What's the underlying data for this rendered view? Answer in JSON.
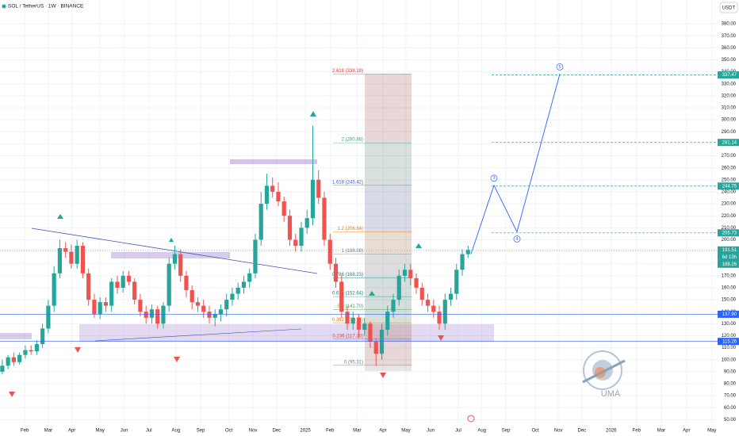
{
  "chart_data": {
    "type": "candlestick",
    "title": "SOL / TetherUS · 1W · BINANCE",
    "currency": "USDT",
    "watermark": "UMA",
    "up_color": "#26a69a",
    "down_color": "#ef5350",
    "open": [
      90,
      95,
      102,
      98,
      104,
      108,
      107,
      113,
      126,
      145,
      172,
      193,
      190,
      180,
      195,
      172,
      150,
      138,
      148,
      145,
      165,
      160,
      170,
      165,
      150,
      140,
      135,
      142,
      130,
      145,
      180,
      188,
      170,
      158,
      148,
      145,
      140,
      135,
      138,
      142,
      150,
      155,
      160,
      165,
      172,
      200,
      230,
      245,
      240,
      232,
      220,
      200,
      195,
      210,
      218,
      250,
      235,
      200,
      180,
      165,
      140,
      130,
      135,
      125,
      130,
      115,
      105,
      125,
      140,
      150,
      170,
      175,
      168,
      160,
      150,
      145,
      140,
      130,
      150,
      155,
      175,
      188
    ],
    "high": [
      100,
      104,
      106,
      106,
      112,
      112,
      116,
      130,
      150,
      178,
      200,
      198,
      196,
      200,
      198,
      176,
      155,
      152,
      152,
      168,
      170,
      174,
      174,
      168,
      155,
      145,
      146,
      145,
      148,
      185,
      195,
      192,
      174,
      162,
      152,
      150,
      145,
      142,
      146,
      155,
      160,
      164,
      170,
      176,
      205,
      240,
      255,
      252,
      248,
      236,
      225,
      205,
      215,
      225,
      295,
      258,
      240,
      205,
      185,
      170,
      145,
      140,
      138,
      135,
      132,
      118,
      130,
      145,
      155,
      175,
      180,
      180,
      172,
      164,
      155,
      150,
      145,
      155,
      160,
      180,
      192,
      195
    ],
    "low": [
      88,
      92,
      95,
      96,
      101,
      104,
      104,
      110,
      122,
      140,
      168,
      185,
      176,
      176,
      168,
      145,
      135,
      134,
      140,
      140,
      155,
      156,
      162,
      146,
      136,
      130,
      130,
      126,
      126,
      140,
      175,
      165,
      152,
      142,
      140,
      135,
      130,
      128,
      132,
      136,
      145,
      150,
      155,
      160,
      168,
      195,
      225,
      235,
      228,
      215,
      195,
      190,
      190,
      205,
      212,
      230,
      195,
      175,
      160,
      135,
      125,
      125,
      118,
      120,
      110,
      95,
      100,
      120,
      135,
      145,
      165,
      162,
      155,
      145,
      140,
      135,
      125,
      125,
      145,
      150,
      170,
      185
    ],
    "close": [
      95,
      102,
      98,
      104,
      108,
      107,
      113,
      126,
      145,
      172,
      193,
      190,
      180,
      195,
      172,
      150,
      138,
      148,
      145,
      165,
      160,
      170,
      165,
      150,
      140,
      135,
      142,
      130,
      145,
      180,
      188,
      170,
      158,
      148,
      145,
      140,
      135,
      138,
      142,
      150,
      155,
      160,
      165,
      172,
      200,
      230,
      245,
      240,
      232,
      220,
      200,
      195,
      210,
      218,
      250,
      235,
      200,
      180,
      165,
      140,
      130,
      135,
      125,
      130,
      115,
      105,
      125,
      140,
      150,
      170,
      175,
      168,
      160,
      150,
      145,
      140,
      130,
      150,
      155,
      175,
      188,
      191.51
    ],
    "xlim": [
      -0.4,
      124.4
    ],
    "xticks": [
      {
        "value": 3.9,
        "label": "Feb"
      },
      {
        "value": 8,
        "label": "Mar"
      },
      {
        "value": 12.1,
        "label": "Apr"
      },
      {
        "value": 17,
        "label": "May"
      },
      {
        "value": 21.2,
        "label": "Jun"
      },
      {
        "value": 25.5,
        "label": "Jul"
      },
      {
        "value": 30.2,
        "label": "Aug"
      },
      {
        "value": 34.5,
        "label": "Sep"
      },
      {
        "value": 39.4,
        "label": "Oct"
      },
      {
        "value": 43.6,
        "label": "Nov"
      },
      {
        "value": 47.7,
        "label": "Dec"
      },
      {
        "value": 52.7,
        "label": "2025"
      },
      {
        "value": 57,
        "label": "Feb"
      },
      {
        "value": 61.7,
        "label": "Mar"
      },
      {
        "value": 66.2,
        "label": "Apr"
      },
      {
        "value": 70.2,
        "label": "May"
      },
      {
        "value": 74.5,
        "label": "Jun"
      },
      {
        "value": 79.3,
        "label": "Jul"
      },
      {
        "value": 83.4,
        "label": "Aug"
      },
      {
        "value": 87.6,
        "label": "Sep"
      },
      {
        "value": 92.7,
        "label": "Oct"
      },
      {
        "value": 96.7,
        "label": "Nov"
      },
      {
        "value": 100.8,
        "label": "Dec"
      },
      {
        "value": 105.9,
        "label": "2026"
      },
      {
        "value": 110.3,
        "label": "Feb"
      },
      {
        "value": 114.6,
        "label": "Mar"
      },
      {
        "value": 119,
        "label": "Apr"
      },
      {
        "value": 123.4,
        "label": "May"
      }
    ],
    "ylim": [
      43,
      390
    ],
    "yticks": [
      {
        "value": 50,
        "label": "50.00"
      },
      {
        "value": 60,
        "label": "60.00"
      },
      {
        "value": 70,
        "label": "70.00"
      },
      {
        "value": 80,
        "label": "80.00"
      },
      {
        "value": 90,
        "label": "90.00"
      },
      {
        "value": 100,
        "label": "100.00"
      },
      {
        "value": 110,
        "label": "110.00"
      },
      {
        "value": 120,
        "label": "120.00"
      },
      {
        "value": 130,
        "label": "130.00"
      },
      {
        "value": 140,
        "label": "140.00"
      },
      {
        "value": 150,
        "label": "150.00"
      },
      {
        "value": 160,
        "label": "160.00"
      },
      {
        "value": 170,
        "label": "170.00"
      },
      {
        "value": 180,
        "label": "180.00"
      },
      {
        "value": 190,
        "label": "190.00"
      },
      {
        "value": 200,
        "label": "200.00"
      },
      {
        "value": 210,
        "label": "210.00"
      },
      {
        "value": 220,
        "label": "220.00"
      },
      {
        "value": 230,
        "label": "230.00"
      },
      {
        "value": 240,
        "label": "240.00"
      },
      {
        "value": 250,
        "label": "250.00"
      },
      {
        "value": 260,
        "label": "260.00"
      },
      {
        "value": 270,
        "label": "270.00"
      },
      {
        "value": 280,
        "label": "280.00"
      },
      {
        "value": 290,
        "label": "290.00"
      },
      {
        "value": 300,
        "label": "300.00"
      },
      {
        "value": 310,
        "label": "310.00"
      },
      {
        "value": 320,
        "label": "320.00"
      },
      {
        "value": 330,
        "label": "330.00"
      },
      {
        "value": 340,
        "label": "340.00"
      },
      {
        "value": 350,
        "label": "350.00"
      },
      {
        "value": 360,
        "label": "360.00"
      },
      {
        "value": 370,
        "label": "370.00"
      },
      {
        "value": 380,
        "label": "380.00"
      }
    ],
    "grid": true,
    "fib": [
      {
        "label": "2.618 (338.19)",
        "value": 338.19,
        "color": "#e53935"
      },
      {
        "label": "2 (280.86)",
        "value": 280.86,
        "color": "#26a69a"
      },
      {
        "label": "1.618 (245.42)",
        "value": 245.42,
        "color": "#2962ff"
      },
      {
        "label": "1.2 (206.64)",
        "value": 206.64,
        "color": "#f57c00"
      },
      {
        "label": "1 (188.08)",
        "value": 188.08,
        "color": "#787b86"
      },
      {
        "label": "0.786 (168.23)",
        "value": 168.23,
        "color": "#00897b"
      },
      {
        "label": "0.618 (152.64)",
        "value": 152.64,
        "color": "#00897b"
      },
      {
        "label": "0.5 (141.70)",
        "value": 141.7,
        "color": "#43a047"
      },
      {
        "label": "0.382 (130.75)",
        "value": 130.75,
        "color": "#f57c00"
      },
      {
        "label": "0.236 (117.20)",
        "value": 117.2,
        "color": "#e53935"
      },
      {
        "label": "0 (95.31)",
        "value": 95.31,
        "color": "#787b86"
      }
    ],
    "projection": {
      "values": [
        188.08,
        245.42,
        206.64,
        338.19
      ],
      "labels": [
        null,
        "3",
        "4",
        "5"
      ],
      "color": "#2962ff"
    },
    "price_tags": [
      {
        "label": "337.47",
        "value": 337.47,
        "color": "#26a69a",
        "style": "dashed"
      },
      {
        "label": "281.14",
        "value": 281.14,
        "color": "#26a69a",
        "style": "dashed"
      },
      {
        "label": "244.75",
        "value": 244.75,
        "color": "#26a69a",
        "style": "dashed"
      },
      {
        "label": "205.73",
        "value": 205.73,
        "color": "#26a69a",
        "style": "dashed"
      },
      {
        "label": "137.90",
        "value": 137.9,
        "color": "#2962ff",
        "style": "solid"
      },
      {
        "label": "115.26",
        "value": 115.26,
        "color": "#2962ff",
        "style": "solid"
      }
    ],
    "last_price": {
      "label": "191.51",
      "value": 191.51,
      "countdown": "6d 13h",
      "prev_label": "188.26",
      "color": "#26a69a"
    }
  }
}
